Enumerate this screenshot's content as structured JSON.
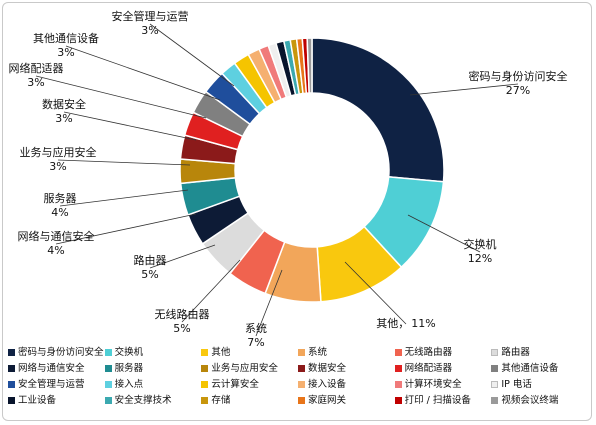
{
  "chart_data": {
    "type": "pie",
    "variant": "donut",
    "legend_position": "bottom",
    "slices": [
      {
        "name": "密码与身份访问安全",
        "value": 27,
        "label": "27%",
        "color": "#0f2244"
      },
      {
        "name": "交换机",
        "value": 12,
        "label": "12%",
        "color": "#4fcfd5"
      },
      {
        "name": "其他",
        "value": 11,
        "label": "11%",
        "color": "#f9c80e"
      },
      {
        "name": "系统",
        "value": 7,
        "label": "7%",
        "color": "#f2a65a"
      },
      {
        "name": "无线路由器",
        "value": 5,
        "label": "5%",
        "color": "#f0634f"
      },
      {
        "name": "路由器",
        "value": 5,
        "label": "5%",
        "color": "#dcdcdc"
      },
      {
        "name": "网络与通信安全",
        "value": 4,
        "label": "4%",
        "color": "#0d1b36"
      },
      {
        "name": "服务器",
        "value": 4,
        "label": "4%",
        "color": "#1f8c91"
      },
      {
        "name": "业务与应用安全",
        "value": 3,
        "label": "3%",
        "color": "#b8860b"
      },
      {
        "name": "数据安全",
        "value": 3,
        "label": "3%",
        "color": "#8b1a1a"
      },
      {
        "name": "网络配适器",
        "value": 3,
        "label": "3%",
        "color": "#e02020"
      },
      {
        "name": "其他通信设备",
        "value": 3,
        "label": "3%",
        "color": "#808080"
      },
      {
        "name": "安全管理与运营",
        "value": 3,
        "label": "3%",
        "color": "#1f4e9c"
      },
      {
        "name": "接入点",
        "value": 2,
        "color": "#5ed0e0"
      },
      {
        "name": "云计算安全",
        "value": 2,
        "color": "#f5c400"
      },
      {
        "name": "接入设备",
        "value": 1.5,
        "color": "#f5b070"
      },
      {
        "name": "计算环境安全",
        "value": 1.2,
        "color": "#f07a7a"
      },
      {
        "name": "IP 电话",
        "value": 1,
        "color": "#efefef"
      },
      {
        "name": "工业设备",
        "value": 1,
        "color": "#08142c"
      },
      {
        "name": "安全支撑技术",
        "value": 0.8,
        "color": "#3ba9b0"
      },
      {
        "name": "存储",
        "value": 0.8,
        "color": "#c8960c"
      },
      {
        "name": "家庭网关",
        "value": 0.7,
        "color": "#e8751a"
      },
      {
        "name": "打印 / 扫描设备",
        "value": 0.6,
        "color": "#c00000"
      },
      {
        "name": "视频会议终端",
        "value": 0.6,
        "color": "#9a9a9a"
      }
    ],
    "slice_labels": [
      {
        "name": "密码与身份访问安全",
        "pct": "27%"
      },
      {
        "name": "交换机",
        "pct": "12%"
      },
      {
        "name": "其他，",
        "pct": "11%",
        "inline": true
      },
      {
        "name": "系统",
        "pct": "7%"
      },
      {
        "name": "无线路由器",
        "pct": "5%"
      },
      {
        "name": "路由器",
        "pct": "5%"
      },
      {
        "name": "网络与通信安全",
        "pct": "4%"
      },
      {
        "name": "服务器",
        "pct": "4%"
      },
      {
        "name": "业务与应用安全",
        "pct": "3%"
      },
      {
        "name": "数据安全",
        "pct": "3%"
      },
      {
        "name": "网络配适器",
        "pct": "3%"
      },
      {
        "name": "其他通信设备",
        "pct": "3%"
      },
      {
        "name": "安全管理与运营",
        "pct": "3%"
      }
    ],
    "legend": [
      {
        "label": "密码与身份访问安全",
        "color": "#0f2244"
      },
      {
        "label": "交换机",
        "color": "#4fcfd5"
      },
      {
        "label": "其他",
        "color": "#f9c80e"
      },
      {
        "label": "系统",
        "color": "#f2a65a"
      },
      {
        "label": "无线路由器",
        "color": "#f0634f"
      },
      {
        "label": "路由器",
        "color": "#dcdcdc"
      },
      {
        "label": "网络与通信安全",
        "color": "#0d1b36"
      },
      {
        "label": "服务器",
        "color": "#1f8c91"
      },
      {
        "label": "业务与应用安全",
        "color": "#b8860b"
      },
      {
        "label": "数据安全",
        "color": "#8b1a1a"
      },
      {
        "label": "网络配适器",
        "color": "#e02020"
      },
      {
        "label": "其他通信设备",
        "color": "#808080"
      },
      {
        "label": "安全管理与运营",
        "color": "#1f4e9c"
      },
      {
        "label": "接入点",
        "color": "#5ed0e0"
      },
      {
        "label": "云计算安全",
        "color": "#f5c400"
      },
      {
        "label": "接入设备",
        "color": "#f5b070"
      },
      {
        "label": "计算环境安全",
        "color": "#f07a7a"
      },
      {
        "label": "IP 电话",
        "color": "#efefef"
      },
      {
        "label": "工业设备",
        "color": "#08142c"
      },
      {
        "label": "安全支撑技术",
        "color": "#3ba9b0"
      },
      {
        "label": "存储",
        "color": "#c8960c"
      },
      {
        "label": "家庭网关",
        "color": "#e8751a"
      },
      {
        "label": "打印 / 扫描设备",
        "color": "#c00000"
      },
      {
        "label": "视频会议终端",
        "color": "#9a9a9a"
      }
    ]
  }
}
